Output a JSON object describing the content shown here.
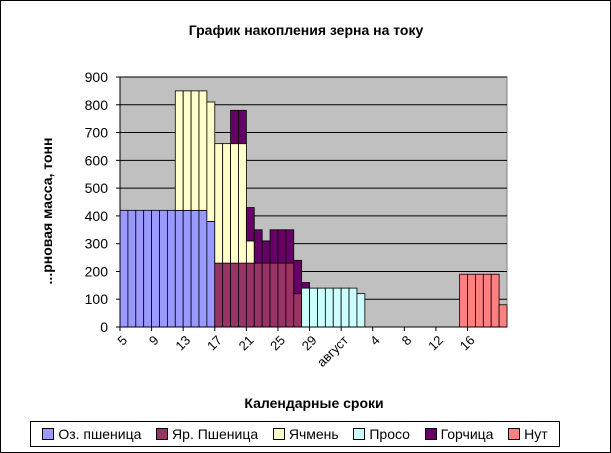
{
  "chart_data": {
    "type": "bar",
    "stacked": true,
    "title": "График накопления зерна на току",
    "xlabel": "Календарные сроки",
    "ylabel": "...рновая масса, тонн",
    "ylim": [
      0,
      900
    ],
    "yticks": [
      0,
      100,
      200,
      300,
      400,
      500,
      600,
      700,
      800,
      900
    ],
    "grid": true,
    "legend_position": "bottom",
    "plot_background": "#c0c0c0",
    "x_tick_labels": [
      "5",
      "9",
      "13",
      "17",
      "21",
      "25",
      "29",
      "август",
      "4",
      "8",
      "12",
      "16"
    ],
    "categories": [
      "5",
      "6",
      "7",
      "8",
      "9",
      "10",
      "11",
      "12",
      "13",
      "14",
      "15",
      "16",
      "17",
      "18",
      "19",
      "20",
      "21",
      "22",
      "23",
      "24",
      "25",
      "26",
      "27",
      "28",
      "29",
      "30",
      "31",
      "август",
      "2",
      "3",
      "4",
      "5",
      "6",
      "7",
      "8",
      "9",
      "10",
      "11",
      "12",
      "13",
      "14",
      "15",
      "16",
      "17",
      "18",
      "19",
      "20",
      "21",
      "22"
    ],
    "series": [
      {
        "name": "Оз. пшеница",
        "color": "#9999ff",
        "values": [
          420,
          420,
          420,
          420,
          420,
          420,
          420,
          420,
          420,
          420,
          420,
          380,
          0,
          0,
          0,
          0,
          0,
          0,
          0,
          0,
          0,
          0,
          0,
          0,
          0,
          0,
          0,
          0,
          0,
          0,
          0,
          0,
          0,
          0,
          0,
          0,
          0,
          0,
          0,
          0,
          0,
          0,
          0,
          0,
          0,
          0,
          0,
          0,
          0
        ]
      },
      {
        "name": "Яр. Пшеница",
        "color": "#993366",
        "values": [
          0,
          0,
          0,
          0,
          0,
          0,
          0,
          0,
          0,
          0,
          0,
          0,
          230,
          230,
          230,
          230,
          230,
          230,
          230,
          230,
          230,
          230,
          120,
          0,
          0,
          0,
          0,
          0,
          0,
          0,
          0,
          0,
          0,
          0,
          0,
          0,
          0,
          0,
          0,
          0,
          0,
          0,
          0,
          0,
          0,
          0,
          0,
          0,
          0
        ]
      },
      {
        "name": "Ячмень",
        "color": "#ffffcc",
        "values": [
          0,
          0,
          0,
          0,
          0,
          0,
          0,
          430,
          430,
          430,
          430,
          430,
          430,
          430,
          430,
          430,
          80,
          0,
          0,
          0,
          0,
          0,
          0,
          0,
          0,
          0,
          0,
          0,
          0,
          0,
          0,
          0,
          0,
          0,
          0,
          0,
          0,
          0,
          0,
          0,
          0,
          0,
          0,
          0,
          0,
          0,
          0,
          0,
          0
        ]
      },
      {
        "name": "Просо",
        "color": "#ccffff",
        "values": [
          0,
          0,
          0,
          0,
          0,
          0,
          0,
          0,
          0,
          0,
          0,
          0,
          0,
          0,
          0,
          0,
          0,
          0,
          0,
          0,
          0,
          0,
          0,
          140,
          140,
          140,
          140,
          140,
          140,
          140,
          120,
          0,
          0,
          0,
          0,
          0,
          0,
          0,
          0,
          0,
          0,
          0,
          0,
          0,
          0,
          0,
          0,
          0,
          0
        ]
      },
      {
        "name": "Горчица",
        "color": "#660066",
        "values": [
          0,
          0,
          0,
          0,
          0,
          0,
          0,
          0,
          0,
          0,
          0,
          0,
          0,
          0,
          120,
          120,
          120,
          120,
          80,
          120,
          120,
          120,
          120,
          20,
          0,
          0,
          0,
          0,
          0,
          0,
          0,
          0,
          0,
          0,
          0,
          0,
          0,
          0,
          0,
          0,
          0,
          0,
          0,
          0,
          0,
          0,
          0,
          0,
          0
        ]
      },
      {
        "name": "Нут",
        "color": "#ff8080",
        "values": [
          0,
          0,
          0,
          0,
          0,
          0,
          0,
          0,
          0,
          0,
          0,
          0,
          0,
          0,
          0,
          0,
          0,
          0,
          0,
          0,
          0,
          0,
          0,
          0,
          0,
          0,
          0,
          0,
          0,
          0,
          0,
          0,
          0,
          0,
          0,
          0,
          0,
          0,
          0,
          0,
          0,
          0,
          0,
          190,
          190,
          190,
          190,
          190,
          80
        ]
      }
    ]
  }
}
